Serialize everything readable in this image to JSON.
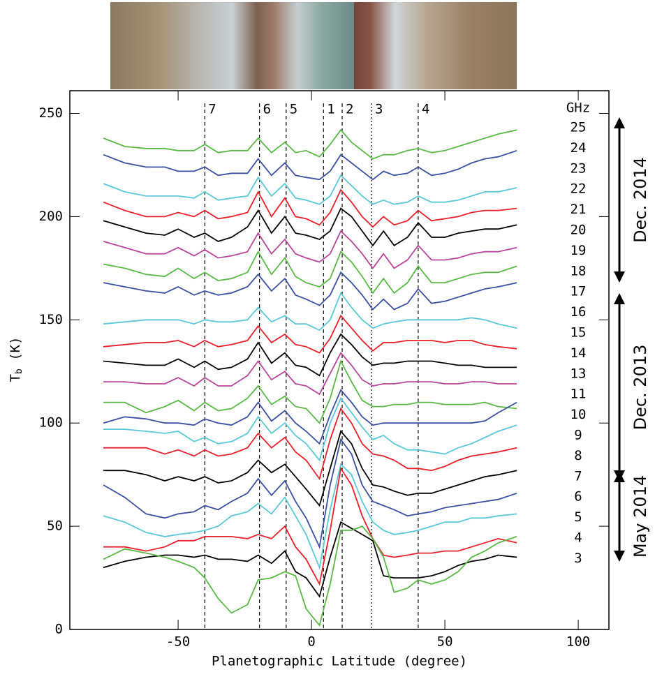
{
  "chart_data": {
    "type": "line",
    "x_label": "Planetographic Latitude (degree)",
    "y_label": {
      "symbol": "T",
      "subscript": "b",
      "unit": "(K)"
    },
    "xlim": [
      -90.6,
      111.5
    ],
    "ylim": [
      0,
      261
    ],
    "xticks": [
      -50,
      0,
      50,
      100
    ],
    "yticks": [
      0,
      50,
      100,
      150,
      200,
      250
    ],
    "markers": [
      {
        "label": "7",
        "x": -40,
        "style": "dashed"
      },
      {
        "label": "6",
        "x": -19.5,
        "style": "dashed"
      },
      {
        "label": "5",
        "x": -9.5,
        "style": "dashed"
      },
      {
        "label": "1",
        "x": 4.5,
        "style": "dashed"
      },
      {
        "label": "2",
        "x": 11.5,
        "style": "dashed"
      },
      {
        "label": "3",
        "x": 22.5,
        "style": "dotted"
      },
      {
        "label": "4",
        "x": 40,
        "style": "dashed"
      }
    ],
    "legend_title": "GHz",
    "epochs": [
      "Dec. 2014",
      "Dec. 2013",
      "May 2014"
    ],
    "x": [
      -78,
      -70,
      -62,
      -55,
      -50,
      -44,
      -40,
      -35,
      -30,
      -24,
      -20,
      -15,
      -10,
      -6,
      -2,
      3,
      7,
      11,
      15,
      19,
      23,
      27,
      31,
      36,
      40,
      45,
      50,
      55,
      60,
      65,
      70,
      77
    ],
    "series": [
      {
        "name": "25",
        "color": "#5ab946",
        "values": [
          238,
          234,
          233,
          233,
          232,
          232,
          235,
          231,
          232,
          232,
          238,
          231,
          236,
          231,
          232,
          229,
          235,
          242,
          236,
          232,
          228,
          230,
          230,
          232,
          233,
          231,
          232,
          234,
          236,
          238,
          240,
          242
        ]
      },
      {
        "name": "24",
        "color": "#3a4fa0",
        "values": [
          230,
          226,
          224,
          224,
          222,
          222,
          224,
          220,
          221,
          221,
          228,
          220,
          226,
          220,
          219,
          218,
          222,
          230,
          226,
          222,
          218,
          222,
          220,
          221,
          224,
          220,
          221,
          223,
          226,
          228,
          229,
          232
        ]
      },
      {
        "name": "23",
        "color": "#5ac8d8",
        "values": [
          216,
          212,
          210,
          210,
          210,
          209,
          212,
          208,
          209,
          210,
          219,
          210,
          216,
          209,
          208,
          206,
          210,
          220,
          215,
          210,
          206,
          208,
          206,
          207,
          210,
          207,
          207,
          208,
          210,
          212,
          212,
          214
        ]
      },
      {
        "name": "22",
        "color": "#e8202a",
        "values": [
          207,
          203,
          200,
          200,
          202,
          200,
          203,
          199,
          200,
          202,
          212,
          200,
          209,
          200,
          199,
          196,
          202,
          213,
          207,
          200,
          195,
          200,
          196,
          198,
          203,
          198,
          199,
          200,
          202,
          203,
          203,
          204
        ]
      },
      {
        "name": "21",
        "color": "#000000",
        "values": [
          198,
          195,
          192,
          191,
          194,
          190,
          192,
          188,
          190,
          195,
          203,
          192,
          200,
          192,
          191,
          189,
          193,
          204,
          200,
          193,
          186,
          193,
          186,
          190,
          197,
          190,
          190,
          192,
          193,
          194,
          194,
          196
        ]
      },
      {
        "name": "20",
        "color": "#b9449b",
        "values": [
          188,
          185,
          182,
          182,
          185,
          181,
          184,
          180,
          181,
          183,
          192,
          182,
          189,
          182,
          180,
          178,
          182,
          193,
          188,
          182,
          175,
          182,
          175,
          179,
          186,
          179,
          179,
          180,
          182,
          183,
          183,
          185
        ]
      },
      {
        "name": "19",
        "color": "#5ab946",
        "values": [
          177,
          175,
          172,
          171,
          175,
          170,
          173,
          169,
          170,
          173,
          183,
          172,
          180,
          171,
          168,
          166,
          170,
          183,
          178,
          171,
          163,
          170,
          163,
          168,
          176,
          168,
          168,
          170,
          172,
          173,
          173,
          176
        ]
      },
      {
        "name": "18",
        "color": "#3a4fa0",
        "values": [
          168,
          166,
          164,
          163,
          166,
          162,
          164,
          162,
          163,
          166,
          172,
          164,
          170,
          162,
          160,
          157,
          162,
          173,
          168,
          162,
          155,
          160,
          155,
          158,
          165,
          158,
          159,
          161,
          163,
          165,
          166,
          168
        ]
      },
      {
        "name": "17",
        "color": "#5ac8d8",
        "values": [
          148,
          149,
          150,
          150,
          150,
          148,
          150,
          149,
          149,
          150,
          156,
          149,
          152,
          148,
          148,
          145,
          150,
          163,
          156,
          150,
          146,
          148,
          149,
          150,
          150,
          150,
          150,
          150,
          151,
          150,
          148,
          146
        ]
      },
      {
        "name": "16",
        "color": "#e8202a",
        "values": [
          137,
          138,
          139,
          139,
          140,
          137,
          140,
          137,
          138,
          140,
          147,
          139,
          143,
          138,
          137,
          134,
          141,
          152,
          146,
          140,
          135,
          139,
          139,
          140,
          140,
          140,
          139,
          140,
          140,
          138,
          137,
          136
        ]
      },
      {
        "name": "15",
        "color": "#000000",
        "values": [
          130,
          129,
          128,
          128,
          131,
          127,
          130,
          126,
          127,
          131,
          139,
          129,
          134,
          128,
          127,
          123,
          134,
          143,
          138,
          132,
          128,
          129,
          129,
          130,
          130,
          130,
          129,
          128,
          128,
          127,
          127,
          127
        ]
      },
      {
        "name": "14",
        "color": "#b9449b",
        "values": [
          120,
          120,
          119,
          119,
          122,
          118,
          122,
          118,
          118,
          123,
          130,
          121,
          125,
          119,
          118,
          114,
          124,
          134,
          128,
          121,
          118,
          119,
          119,
          120,
          120,
          120,
          119,
          119,
          120,
          120,
          119,
          119
        ]
      },
      {
        "name": "13",
        "color": "#5ab946",
        "values": [
          110,
          110,
          105,
          108,
          111,
          106,
          110,
          106,
          107,
          112,
          118,
          109,
          113,
          108,
          107,
          100,
          112,
          130,
          120,
          111,
          108,
          108,
          109,
          109,
          110,
          110,
          109,
          109,
          109,
          110,
          108,
          107
        ]
      },
      {
        "name": "11",
        "color": "#3a4fa0",
        "values": [
          100,
          103,
          102,
          100,
          100,
          99,
          102,
          100,
          99,
          103,
          110,
          101,
          106,
          100,
          96,
          90,
          104,
          116,
          110,
          103,
          99,
          100,
          100,
          100,
          100,
          100,
          100,
          100,
          100,
          101,
          105,
          110
        ]
      },
      {
        "name": "10",
        "color": "#5ac8d8",
        "values": [
          97,
          97,
          96,
          95,
          96,
          91,
          93,
          90,
          91,
          95,
          103,
          95,
          100,
          94,
          90,
          82,
          100,
          112,
          105,
          98,
          92,
          94,
          90,
          87,
          87,
          86,
          85,
          88,
          90,
          93,
          96,
          99
        ]
      },
      {
        "name": "9",
        "color": "#e8202a",
        "values": [
          88,
          88,
          88,
          85,
          87,
          84,
          87,
          84,
          85,
          88,
          95,
          88,
          93,
          86,
          82,
          73,
          92,
          107,
          100,
          90,
          85,
          84,
          82,
          78,
          78,
          77,
          79,
          82,
          84,
          85,
          86,
          88
        ]
      },
      {
        "name": "8",
        "color": "#000000",
        "values": [
          77,
          77,
          75,
          72,
          74,
          72,
          74,
          71,
          72,
          76,
          82,
          76,
          80,
          74,
          68,
          60,
          78,
          96,
          90,
          78,
          70,
          69,
          67,
          65,
          66,
          66,
          68,
          70,
          72,
          74,
          75,
          77
        ]
      },
      {
        "name": "7",
        "color": "#3a4fa0",
        "values": [
          70,
          64,
          56,
          54,
          56,
          57,
          60,
          58,
          62,
          66,
          73,
          65,
          72,
          62,
          54,
          40,
          70,
          92,
          85,
          70,
          62,
          60,
          58,
          55,
          56,
          57,
          59,
          60,
          61,
          62,
          63,
          66
        ]
      },
      {
        "name": "6",
        "color": "#5ac8d8",
        "values": [
          55,
          52,
          47,
          45,
          46,
          47,
          48,
          50,
          55,
          57,
          61,
          56,
          64,
          55,
          46,
          30,
          58,
          80,
          75,
          62,
          52,
          48,
          46,
          47,
          48,
          50,
          52,
          52,
          54,
          54,
          55,
          56
        ]
      },
      {
        "name": "5",
        "color": "#e8202a",
        "values": [
          40,
          40,
          38,
          40,
          43,
          43,
          45,
          45,
          45,
          44,
          46,
          44,
          50,
          40,
          34,
          22,
          48,
          78,
          70,
          55,
          44,
          36,
          35,
          36,
          37,
          37,
          38,
          38,
          40,
          42,
          44,
          42
        ]
      },
      {
        "name": "4",
        "color": "#000000",
        "values": [
          30,
          33,
          35,
          36,
          36,
          35,
          36,
          34,
          34,
          33,
          36,
          32,
          38,
          28,
          25,
          16,
          35,
          52,
          49,
          46,
          43,
          26,
          25,
          25,
          25,
          26,
          28,
          31,
          33,
          34,
          36,
          35
        ]
      },
      {
        "name": "3",
        "color": "#5ab946",
        "values": [
          34,
          39,
          37,
          35,
          33,
          30,
          25,
          15,
          8,
          12,
          24,
          25,
          28,
          26,
          10,
          2,
          22,
          48,
          48,
          50,
          44,
          35,
          18,
          20,
          24,
          22,
          24,
          28,
          35,
          38,
          42,
          45
        ]
      }
    ]
  }
}
